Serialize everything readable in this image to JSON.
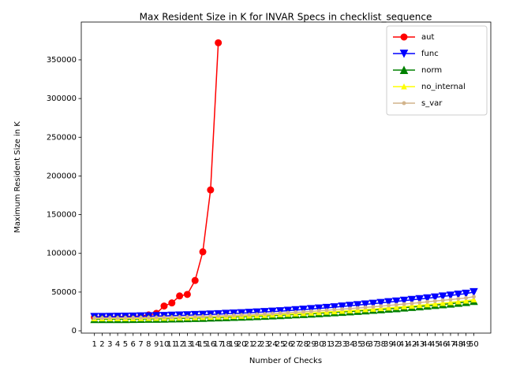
{
  "chart_data": {
    "type": "line",
    "title": "Max Resident Size in K for INVAR Specs in checklist_sequence",
    "x_label": "Number of Checks",
    "y_label": "Maximum Resident Size in K",
    "x": [
      1,
      2,
      3,
      4,
      5,
      6,
      7,
      8,
      9,
      10,
      11,
      12,
      13,
      14,
      15,
      16,
      17,
      18,
      19,
      20,
      21,
      22,
      23,
      24,
      25,
      26,
      27,
      28,
      29,
      30,
      31,
      32,
      33,
      34,
      35,
      36,
      37,
      38,
      39,
      40,
      41,
      42,
      43,
      44,
      45,
      46,
      47,
      48,
      49,
      50
    ],
    "xlim": [
      -0.7,
      52.2
    ],
    "xticks": [
      1,
      2,
      3,
      4,
      5,
      6,
      7,
      8,
      9,
      10,
      11,
      12,
      13,
      14,
      15,
      16,
      17,
      18,
      19,
      20,
      21,
      22,
      23,
      24,
      25,
      26,
      27,
      28,
      29,
      30,
      31,
      32,
      33,
      34,
      35,
      36,
      37,
      38,
      39,
      40,
      41,
      42,
      43,
      44,
      45,
      46,
      47,
      48,
      49,
      50
    ],
    "ylim": [
      -3000,
      398800
    ],
    "yticks": [
      0,
      50000,
      100000,
      150000,
      200000,
      250000,
      300000,
      350000
    ],
    "legend": "upper right",
    "series": [
      {
        "name": "aut",
        "color": "#ff0000",
        "marker": "o",
        "values": [
          17500,
          17500,
          17500,
          17600,
          17800,
          18200,
          19000,
          20500,
          22500,
          32000,
          36000,
          45000,
          47000,
          65000,
          102000,
          182000,
          372000,
          null,
          null,
          null,
          null,
          null,
          null,
          null,
          null,
          null,
          null,
          null,
          null,
          null,
          null,
          null,
          null,
          null,
          null,
          null,
          null,
          null,
          null,
          null,
          null,
          null,
          null,
          null,
          null,
          null,
          null,
          null,
          null,
          null
        ]
      },
      {
        "name": "func",
        "color": "#0000ff",
        "marker": "v",
        "values": [
          18000,
          18000,
          18100,
          18200,
          18300,
          18500,
          18700,
          18900,
          19100,
          19300,
          19600,
          19900,
          20200,
          20500,
          20800,
          21200,
          21600,
          22000,
          22400,
          22800,
          23300,
          23800,
          24300,
          24800,
          25400,
          26000,
          26700,
          27400,
          28100,
          28900,
          29700,
          30500,
          31400,
          32300,
          33200,
          34100,
          35000,
          36000,
          37000,
          38000,
          39000,
          40000,
          41000,
          42000,
          43200,
          44400,
          45600,
          46800,
          48000,
          50000
        ]
      },
      {
        "name": "norm",
        "color": "#008000",
        "marker": "^",
        "values": [
          15000,
          15000,
          15000,
          15100,
          15100,
          15200,
          15300,
          15400,
          15500,
          15600,
          15800,
          16000,
          16200,
          16400,
          16600,
          16900,
          17200,
          17500,
          17800,
          18100,
          18500,
          18900,
          19300,
          19700,
          20100,
          20600,
          21100,
          21600,
          22100,
          22600,
          23200,
          23800,
          24400,
          25000,
          25600,
          26300,
          27000,
          27700,
          28400,
          29100,
          29900,
          30700,
          31500,
          32300,
          33200,
          34100,
          35000,
          36000,
          37000,
          38500
        ]
      },
      {
        "name": "no_internal",
        "color": "#ffff00",
        "marker": "^s",
        "values": [
          15800,
          15800,
          15800,
          15900,
          15900,
          16000,
          16100,
          16200,
          16300,
          16400,
          16600,
          16800,
          17000,
          17200,
          17500,
          17800,
          18100,
          18400,
          18700,
          19000,
          19400,
          19800,
          20200,
          20600,
          21100,
          21600,
          22100,
          22600,
          23100,
          23700,
          24300,
          24900,
          25500,
          26100,
          26800,
          27500,
          28200,
          28900,
          29700,
          30500,
          31300,
          32100,
          33000,
          33900,
          34800,
          35700,
          36700,
          37700,
          38700,
          40200
        ]
      },
      {
        "name": "s_var",
        "color": "#d2b48c",
        "marker": ".",
        "values": [
          16500,
          16500,
          16600,
          16600,
          16700,
          16800,
          16900,
          17000,
          17100,
          17300,
          17500,
          17700,
          17900,
          18200,
          18500,
          18800,
          19100,
          19500,
          19900,
          20300,
          20700,
          21200,
          21700,
          22200,
          22700,
          23300,
          23900,
          24500,
          25100,
          25800,
          26500,
          27200,
          27900,
          28600,
          29400,
          30200,
          31000,
          31800,
          32700,
          33600,
          34500,
          35400,
          36400,
          37400,
          38400,
          39400,
          40400,
          41400,
          42400,
          44000
        ]
      }
    ]
  }
}
